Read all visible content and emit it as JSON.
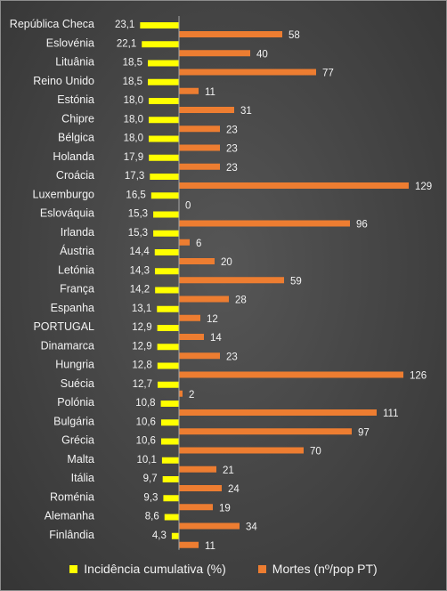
{
  "chart_data": {
    "type": "bar",
    "orientation": "horizontal",
    "categories": [
      "República Checa",
      "Eslovénia",
      "Lituânia",
      "Reino Unido",
      "Estónia",
      "Chipre",
      "Bélgica",
      "Holanda",
      "Croácia",
      "Luxemburgo",
      "Eslováquia",
      "Irlanda",
      "Áustria",
      "Letónia",
      "França",
      "Espanha",
      "PORTUGAL",
      "Dinamarca",
      "Hungria",
      "Suécia",
      "Polónia",
      "Bulgária",
      "Grécia",
      "Malta",
      "Itália",
      "Roménia",
      "Alemanha",
      "Finlândia"
    ],
    "series": [
      {
        "name": "Incidência cumulativa (%)",
        "color": "#ffff00",
        "direction": "left",
        "values": [
          23.1,
          22.1,
          18.5,
          18.5,
          18.0,
          18.0,
          18.0,
          17.9,
          17.3,
          16.5,
          15.3,
          15.3,
          14.4,
          14.3,
          14.2,
          13.1,
          12.9,
          12.9,
          12.8,
          12.7,
          10.8,
          10.6,
          10.6,
          10.1,
          9.7,
          9.3,
          8.6,
          4.3
        ],
        "labels": [
          "23,1",
          "22,1",
          "18,5",
          "18,5",
          "18,0",
          "18,0",
          "18,0",
          "17,9",
          "17,3",
          "16,5",
          "15,3",
          "15,3",
          "14,4",
          "14,3",
          "14,2",
          "13,1",
          "12,9",
          "12,9",
          "12,8",
          "12,7",
          "10,8",
          "10,6",
          "10,6",
          "10,1",
          "9,7",
          "9,3",
          "8,6",
          "4,3"
        ]
      },
      {
        "name": "Mortes (nº/pop PT)",
        "color": "#ed7d31",
        "direction": "right",
        "values": [
          58,
          40,
          77,
          11,
          31,
          23,
          23,
          23,
          129,
          0,
          96,
          6,
          20,
          59,
          28,
          12,
          14,
          23,
          126,
          2,
          111,
          97,
          70,
          21,
          24,
          19,
          34,
          11
        ],
        "labels": [
          "58",
          "40",
          "77",
          "11",
          "31",
          "23",
          "23",
          "23",
          "129",
          "0",
          "96",
          "6",
          "20",
          "59",
          "28",
          "12",
          "14",
          "23",
          "126",
          "2",
          "111",
          "97",
          "70",
          "21",
          "24",
          "19",
          "34",
          "11"
        ]
      }
    ],
    "grid": false,
    "legend_position": "bottom"
  }
}
